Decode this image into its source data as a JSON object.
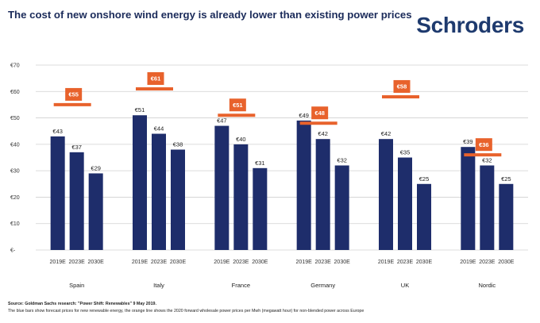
{
  "header": {
    "title": "The cost of new onshore wind energy is already lower than existing power prices",
    "brand": "Schroders"
  },
  "footnotes": {
    "source": "Source: Goldman Sachs research: \"Power Shift: Renewables\" 9 May 2019.",
    "explanation": "The blue bars show forecast prices for new renewable energy, the orange line shows the 2020 forward wholesale power prices per Mwh (megawatt hour) for non-blended power across Europe"
  },
  "chart_data": {
    "type": "bar",
    "title": "The cost of new onshore wind energy is already lower than existing power prices",
    "xlabel": "",
    "ylabel": "",
    "ylim": [
      0,
      70
    ],
    "yticks": [
      0,
      10,
      20,
      30,
      40,
      50,
      60,
      70
    ],
    "ytick_labels": [
      "€-",
      "€10",
      "€20",
      "€30",
      "€40",
      "€50",
      "€60",
      "€70"
    ],
    "grid": true,
    "bar_color": "#1e2d6b",
    "price_color": "#e8622c",
    "periods": [
      "2019E",
      "2023E",
      "2030E"
    ],
    "groups": [
      {
        "country": "Spain",
        "values": [
          43,
          37,
          29
        ],
        "value_labels": [
          "€43",
          "€37",
          "€29"
        ],
        "power_price": 55,
        "power_price_label": "€55"
      },
      {
        "country": "Italy",
        "values": [
          51,
          44,
          38
        ],
        "value_labels": [
          "€51",
          "€44",
          "€38"
        ],
        "power_price": 61,
        "power_price_label": "€61"
      },
      {
        "country": "France",
        "values": [
          47,
          40,
          31
        ],
        "value_labels": [
          "€47",
          "€40",
          "€31"
        ],
        "power_price": 51,
        "power_price_label": "€51"
      },
      {
        "country": "Germany",
        "values": [
          49,
          42,
          32
        ],
        "value_labels": [
          "€49",
          "€42",
          "€32"
        ],
        "power_price": 48,
        "power_price_label": "€48"
      },
      {
        "country": "UK",
        "values": [
          42,
          35,
          25
        ],
        "value_labels": [
          "€42",
          "€35",
          "€25"
        ],
        "power_price": 58,
        "power_price_label": "€58"
      },
      {
        "country": "Nordic",
        "values": [
          39,
          32,
          25
        ],
        "value_labels": [
          "€39",
          "€32",
          "€25"
        ],
        "power_price": 36,
        "power_price_label": "€36"
      }
    ]
  }
}
